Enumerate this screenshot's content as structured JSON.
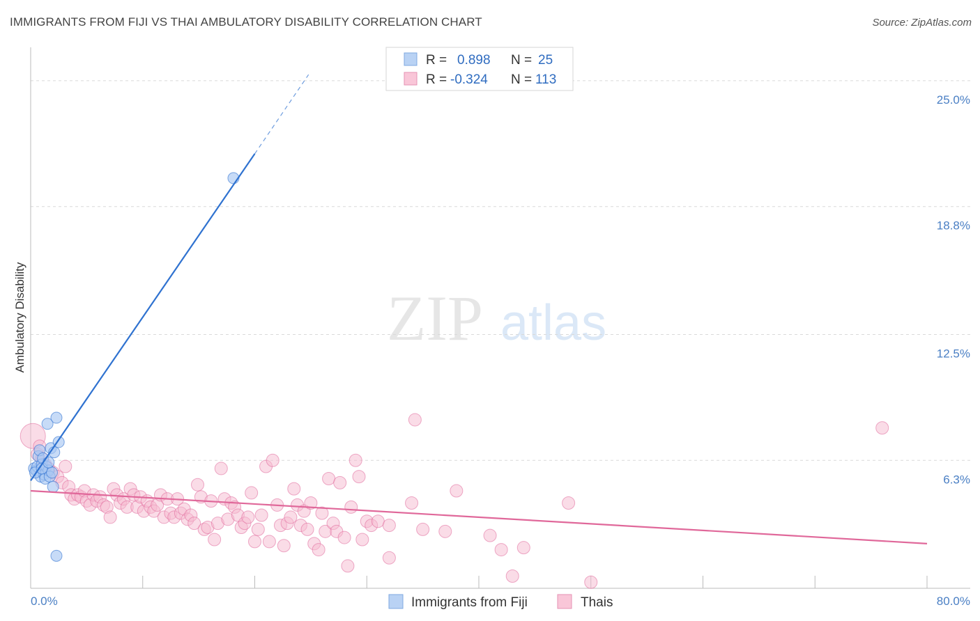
{
  "header": {
    "title": "IMMIGRANTS FROM FIJI VS THAI AMBULATORY DISABILITY CORRELATION CHART",
    "source": "Source: ZipAtlas.com"
  },
  "watermark": {
    "zip": "ZIP",
    "atlas": "atlas"
  },
  "colors": {
    "fiji": "#2f72d0",
    "fiji_fill": "#a9c8f2",
    "thai": "#e0689a",
    "thai_fill": "#f6b9cf",
    "axis_tick": "#4a7fc4",
    "grid": "#d9d9d9"
  },
  "legend": {
    "rows": [
      {
        "r_label": "R =",
        "r_value": "0.898",
        "n_label": "N =",
        "n_value": "25"
      },
      {
        "r_label": "R =",
        "r_value": "-0.324",
        "n_label": "N =",
        "n_value": "113"
      }
    ]
  },
  "chart_data": {
    "type": "scatter",
    "title": "IMMIGRANTS FROM FIJI VS THAI AMBULATORY DISABILITY CORRELATION CHART",
    "xlabel": "",
    "ylabel": "Ambulatory Disability",
    "xlim": [
      0,
      80
    ],
    "ylim": [
      0,
      26.3
    ],
    "x_ticks": [
      "0.0%",
      "80.0%"
    ],
    "y_ticks": [
      {
        "value": 6.3,
        "label": "6.3%"
      },
      {
        "value": 12.5,
        "label": "12.5%"
      },
      {
        "value": 18.8,
        "label": "18.8%"
      },
      {
        "value": 25.0,
        "label": "25.0%"
      }
    ],
    "grid": true,
    "legend_position": "bottom",
    "series": [
      {
        "name": "Immigrants from Fiji",
        "r": 0.898,
        "n": 25,
        "trend": {
          "x0": 0.0,
          "y0": 5.3,
          "x1": 20.0,
          "y1": 21.4,
          "dash_to_x": 24.8,
          "dash_to_y": 25.3
        },
        "points": [
          [
            0.3,
            5.9
          ],
          [
            0.5,
            5.8
          ],
          [
            0.6,
            6.0
          ],
          [
            0.7,
            6.5
          ],
          [
            0.8,
            6.8
          ],
          [
            0.9,
            5.5
          ],
          [
            1.0,
            6.1
          ],
          [
            1.1,
            6.4
          ],
          [
            1.2,
            5.6
          ],
          [
            1.3,
            5.4
          ],
          [
            1.4,
            6.0
          ],
          [
            1.5,
            8.1
          ],
          [
            1.6,
            5.8
          ],
          [
            1.7,
            5.5
          ],
          [
            1.8,
            6.9
          ],
          [
            1.9,
            5.7
          ],
          [
            2.0,
            5.0
          ],
          [
            2.1,
            6.7
          ],
          [
            2.3,
            1.6
          ],
          [
            2.5,
            7.2
          ],
          [
            2.3,
            8.4
          ],
          [
            18.1,
            20.2
          ],
          [
            0.4,
            5.7
          ],
          [
            1.0,
            5.9
          ],
          [
            1.6,
            6.2
          ]
        ]
      },
      {
        "name": "Thais",
        "r": -0.324,
        "n": 113,
        "trend": {
          "x0": 0.0,
          "y0": 4.8,
          "x1": 80.0,
          "y1": 2.2
        },
        "points": [
          [
            0.2,
            7.5
          ],
          [
            0.6,
            6.6
          ],
          [
            0.8,
            7.0
          ],
          [
            1.0,
            6.4
          ],
          [
            1.3,
            6.1
          ],
          [
            1.6,
            5.9
          ],
          [
            2.0,
            5.7
          ],
          [
            2.4,
            5.5
          ],
          [
            2.8,
            5.2
          ],
          [
            3.1,
            6.0
          ],
          [
            3.4,
            5.0
          ],
          [
            3.6,
            4.6
          ],
          [
            3.9,
            4.4
          ],
          [
            4.2,
            4.6
          ],
          [
            4.5,
            4.5
          ],
          [
            4.8,
            4.8
          ],
          [
            5.0,
            4.3
          ],
          [
            5.3,
            4.1
          ],
          [
            5.6,
            4.6
          ],
          [
            5.9,
            4.3
          ],
          [
            6.2,
            4.5
          ],
          [
            6.5,
            4.1
          ],
          [
            6.8,
            4.0
          ],
          [
            7.1,
            3.5
          ],
          [
            7.4,
            4.9
          ],
          [
            7.7,
            4.6
          ],
          [
            8.0,
            4.2
          ],
          [
            8.3,
            4.4
          ],
          [
            8.6,
            4.0
          ],
          [
            8.9,
            4.9
          ],
          [
            9.2,
            4.6
          ],
          [
            9.5,
            4.0
          ],
          [
            9.8,
            4.5
          ],
          [
            10.1,
            3.8
          ],
          [
            10.4,
            4.3
          ],
          [
            10.7,
            4.0
          ],
          [
            11.0,
            3.8
          ],
          [
            11.3,
            4.1
          ],
          [
            11.6,
            4.6
          ],
          [
            11.9,
            3.5
          ],
          [
            12.2,
            4.4
          ],
          [
            12.5,
            3.7
          ],
          [
            12.8,
            3.5
          ],
          [
            13.1,
            4.4
          ],
          [
            13.4,
            3.7
          ],
          [
            13.7,
            3.9
          ],
          [
            14.0,
            3.4
          ],
          [
            14.3,
            3.6
          ],
          [
            14.6,
            3.2
          ],
          [
            14.9,
            5.1
          ],
          [
            15.2,
            4.5
          ],
          [
            15.5,
            2.9
          ],
          [
            15.8,
            3.0
          ],
          [
            16.1,
            4.3
          ],
          [
            16.4,
            2.4
          ],
          [
            16.7,
            3.2
          ],
          [
            17.0,
            5.9
          ],
          [
            17.3,
            4.4
          ],
          [
            17.6,
            3.4
          ],
          [
            17.9,
            4.2
          ],
          [
            18.2,
            4.0
          ],
          [
            18.5,
            3.6
          ],
          [
            18.8,
            3.0
          ],
          [
            19.1,
            3.2
          ],
          [
            19.4,
            3.5
          ],
          [
            19.7,
            4.7
          ],
          [
            20.0,
            2.3
          ],
          [
            20.3,
            2.9
          ],
          [
            20.6,
            3.6
          ],
          [
            21.0,
            6.0
          ],
          [
            21.3,
            2.3
          ],
          [
            21.6,
            6.3
          ],
          [
            22.0,
            4.1
          ],
          [
            22.3,
            3.1
          ],
          [
            22.6,
            2.1
          ],
          [
            22.9,
            3.2
          ],
          [
            23.2,
            3.5
          ],
          [
            23.5,
            4.9
          ],
          [
            23.8,
            4.1
          ],
          [
            24.1,
            3.1
          ],
          [
            24.4,
            3.8
          ],
          [
            24.7,
            2.9
          ],
          [
            25.0,
            4.2
          ],
          [
            25.3,
            2.2
          ],
          [
            25.7,
            1.9
          ],
          [
            26.0,
            3.7
          ],
          [
            26.3,
            2.8
          ],
          [
            26.6,
            5.4
          ],
          [
            27.0,
            3.2
          ],
          [
            27.3,
            2.8
          ],
          [
            27.6,
            5.2
          ],
          [
            28.0,
            2.5
          ],
          [
            28.3,
            1.1
          ],
          [
            28.6,
            4.0
          ],
          [
            29.0,
            6.3
          ],
          [
            29.3,
            5.5
          ],
          [
            29.6,
            2.4
          ],
          [
            30.0,
            3.3
          ],
          [
            30.4,
            3.1
          ],
          [
            31.0,
            3.3
          ],
          [
            32.0,
            3.1
          ],
          [
            34.0,
            4.2
          ],
          [
            35.0,
            2.9
          ],
          [
            37.0,
            2.8
          ],
          [
            38.0,
            4.8
          ],
          [
            41.0,
            2.6
          ],
          [
            42.0,
            1.9
          ],
          [
            43.0,
            0.6
          ],
          [
            44.0,
            2.0
          ],
          [
            48.0,
            4.2
          ],
          [
            50.0,
            0.3
          ],
          [
            76.0,
            7.9
          ],
          [
            34.3,
            8.3
          ],
          [
            32.0,
            1.5
          ]
        ]
      }
    ]
  },
  "bottom_legend": {
    "fiji_label": "Immigrants from Fiji",
    "thai_label": "Thais"
  }
}
